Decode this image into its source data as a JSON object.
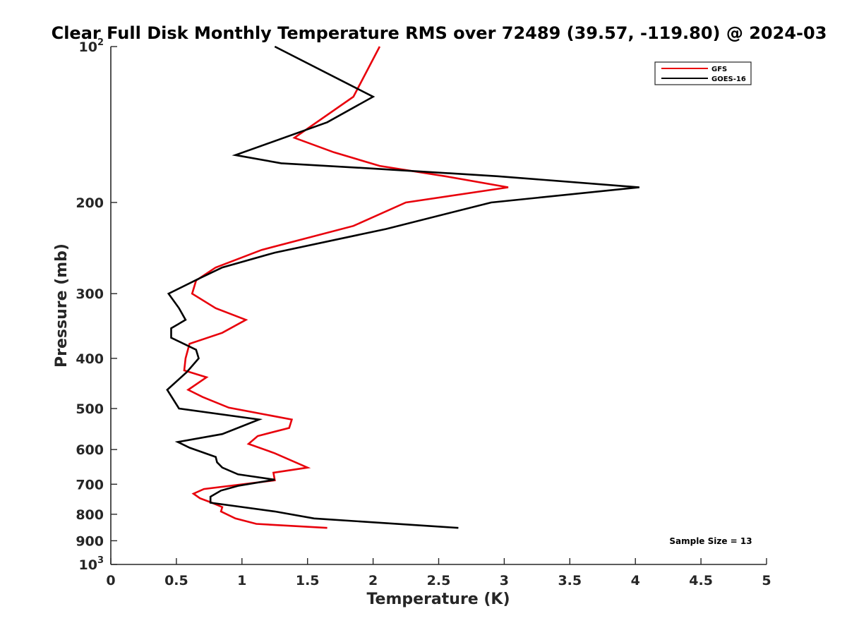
{
  "chart_data": {
    "type": "line",
    "title": "Clear Full Disk Monthly Temperature RMS over 72489 (39.57, -119.80) @ 2024-03",
    "xlabel": "Temperature (K)",
    "ylabel": "Pressure (mb)",
    "xlim": [
      0,
      5
    ],
    "ylim": [
      100,
      1000
    ],
    "y_scale": "log",
    "y_reversed": true,
    "x_ticks": [
      "0",
      "0.5",
      "1",
      "1.5",
      "2",
      "2.5",
      "3",
      "3.5",
      "4",
      "4.5",
      "5"
    ],
    "x_tick_values": [
      0,
      0.5,
      1,
      1.5,
      2,
      2.5,
      3,
      3.5,
      4,
      4.5,
      5
    ],
    "y_ticks": [
      {
        "value": 100,
        "label": "10",
        "exp": "2"
      },
      {
        "value": 200,
        "label": "200",
        "exp": ""
      },
      {
        "value": 300,
        "label": "300",
        "exp": ""
      },
      {
        "value": 400,
        "label": "400",
        "exp": ""
      },
      {
        "value": 500,
        "label": "500",
        "exp": ""
      },
      {
        "value": 600,
        "label": "600",
        "exp": ""
      },
      {
        "value": 700,
        "label": "700",
        "exp": ""
      },
      {
        "value": 800,
        "label": "800",
        "exp": ""
      },
      {
        "value": 900,
        "label": "900",
        "exp": ""
      },
      {
        "value": 1000,
        "label": "10",
        "exp": "3"
      }
    ],
    "grid": false,
    "legend_position": "top-right",
    "series": [
      {
        "name": "GFS",
        "color": "#e8000b",
        "points": [
          [
            2.05,
            100
          ],
          [
            1.85,
            125
          ],
          [
            1.4,
            150
          ],
          [
            1.7,
            160
          ],
          [
            2.05,
            170
          ],
          [
            2.55,
            178
          ],
          [
            3.03,
            187
          ],
          [
            2.25,
            200
          ],
          [
            1.85,
            222
          ],
          [
            1.15,
            247
          ],
          [
            0.8,
            267
          ],
          [
            0.65,
            283
          ],
          [
            0.62,
            300
          ],
          [
            0.8,
            320
          ],
          [
            1.03,
            337
          ],
          [
            0.85,
            357
          ],
          [
            0.6,
            375
          ],
          [
            0.57,
            400
          ],
          [
            0.56,
            422
          ],
          [
            0.73,
            435
          ],
          [
            0.59,
            460
          ],
          [
            0.7,
            475
          ],
          [
            0.9,
            498
          ],
          [
            1.38,
            525
          ],
          [
            1.36,
            545
          ],
          [
            1.12,
            565
          ],
          [
            1.05,
            585
          ],
          [
            1.25,
            610
          ],
          [
            1.5,
            650
          ],
          [
            1.24,
            665
          ],
          [
            1.25,
            688
          ],
          [
            0.71,
            715
          ],
          [
            0.63,
            730
          ],
          [
            0.68,
            745
          ],
          [
            0.77,
            760
          ],
          [
            0.85,
            775
          ],
          [
            0.84,
            790
          ],
          [
            0.95,
            815
          ],
          [
            1.11,
            835
          ],
          [
            1.65,
            850
          ]
        ]
      },
      {
        "name": "GOES-16",
        "color": "#000000",
        "points": [
          [
            1.25,
            100
          ],
          [
            2.0,
            125
          ],
          [
            1.65,
            140
          ],
          [
            0.95,
            162
          ],
          [
            1.3,
            168
          ],
          [
            2.0,
            172
          ],
          [
            2.95,
            178
          ],
          [
            4.03,
            187
          ],
          [
            2.9,
            200
          ],
          [
            2.1,
            225
          ],
          [
            1.25,
            250
          ],
          [
            0.85,
            267
          ],
          [
            0.68,
            280
          ],
          [
            0.44,
            300
          ],
          [
            0.52,
            320
          ],
          [
            0.57,
            337
          ],
          [
            0.46,
            350
          ],
          [
            0.46,
            365
          ],
          [
            0.65,
            385
          ],
          [
            0.67,
            400
          ],
          [
            0.58,
            425
          ],
          [
            0.43,
            460
          ],
          [
            0.52,
            500
          ],
          [
            1.13,
            525
          ],
          [
            0.85,
            560
          ],
          [
            0.51,
            580
          ],
          [
            0.6,
            595
          ],
          [
            0.8,
            620
          ],
          [
            0.81,
            635
          ],
          [
            0.85,
            650
          ],
          [
            0.97,
            670
          ],
          [
            1.25,
            686
          ],
          [
            0.97,
            705
          ],
          [
            0.84,
            720
          ],
          [
            0.76,
            740
          ],
          [
            0.76,
            760
          ],
          [
            1.25,
            790
          ],
          [
            1.55,
            815
          ],
          [
            2.65,
            850
          ]
        ]
      }
    ],
    "annotation": "Sample Size = 13"
  }
}
